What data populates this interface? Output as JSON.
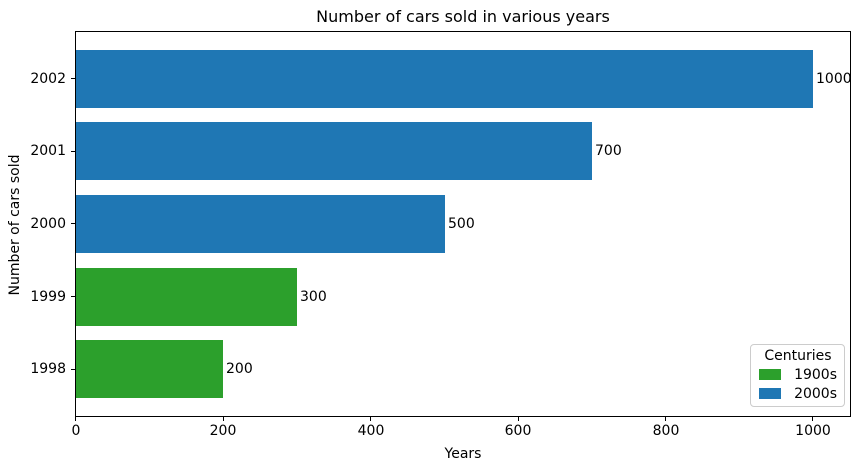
{
  "chart_data": {
    "type": "bar",
    "orientation": "horizontal",
    "title": "Number of cars sold in various years",
    "xlabel": "Years",
    "ylabel": "Number of cars sold",
    "categories": [
      "1998",
      "1999",
      "2000",
      "2001",
      "2002"
    ],
    "values": [
      200,
      300,
      500,
      700,
      1000
    ],
    "bar_labels": [
      "200",
      "300",
      "500",
      "700",
      "1000"
    ],
    "bar_colors": [
      "#2ca02c",
      "#2ca02c",
      "#1f77b4",
      "#1f77b4",
      "#1f77b4"
    ],
    "xlim": [
      0,
      1050
    ],
    "xticks": [
      0,
      200,
      400,
      600,
      800,
      1000
    ],
    "grid": false,
    "legend": {
      "title": "Centuries",
      "position": "lower-right",
      "entries": [
        {
          "label": "1900s",
          "color": "#2ca02c"
        },
        {
          "label": "2000s",
          "color": "#1f77b4"
        }
      ]
    },
    "colors": {
      "accent_blue": "#1f77b4",
      "accent_green": "#2ca02c",
      "text": "#000000",
      "legend_border": "#cccccc"
    }
  }
}
